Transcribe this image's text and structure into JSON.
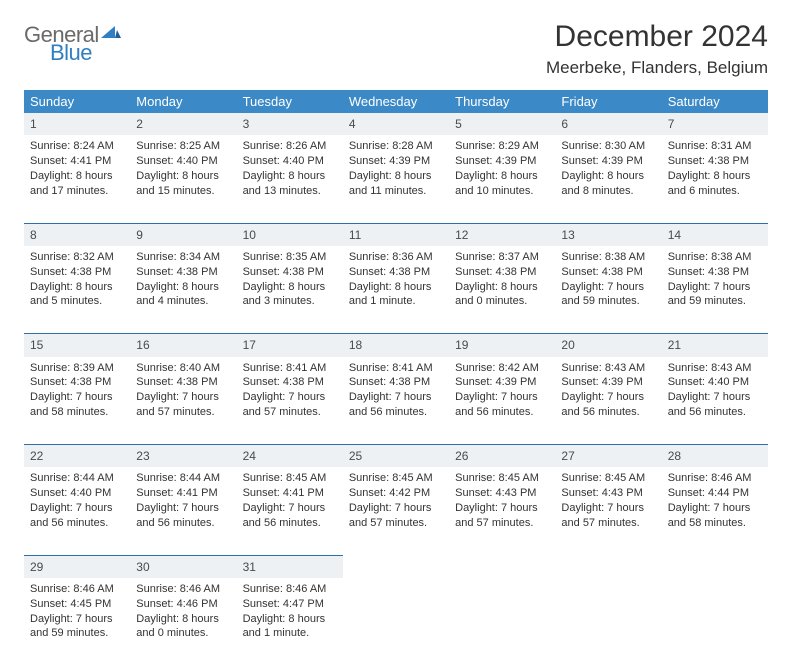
{
  "brand": {
    "general": "General",
    "blue": "Blue"
  },
  "title": "December 2024",
  "location": "Meerbeke, Flanders, Belgium",
  "colors": {
    "header_bg": "#3b89c7",
    "header_text": "#ffffff",
    "row_divider": "#2f6fa8",
    "daynum_bg": "#eef1f3",
    "text": "#333333",
    "logo_gray": "#6a6a6a",
    "logo_blue": "#2f7fc2",
    "page_bg": "#ffffff"
  },
  "weekdays": [
    "Sunday",
    "Monday",
    "Tuesday",
    "Wednesday",
    "Thursday",
    "Friday",
    "Saturday"
  ],
  "weeks": [
    [
      {
        "n": "1",
        "sr": "Sunrise: 8:24 AM",
        "ss": "Sunset: 4:41 PM",
        "dl": "Daylight: 8 hours and 17 minutes."
      },
      {
        "n": "2",
        "sr": "Sunrise: 8:25 AM",
        "ss": "Sunset: 4:40 PM",
        "dl": "Daylight: 8 hours and 15 minutes."
      },
      {
        "n": "3",
        "sr": "Sunrise: 8:26 AM",
        "ss": "Sunset: 4:40 PM",
        "dl": "Daylight: 8 hours and 13 minutes."
      },
      {
        "n": "4",
        "sr": "Sunrise: 8:28 AM",
        "ss": "Sunset: 4:39 PM",
        "dl": "Daylight: 8 hours and 11 minutes."
      },
      {
        "n": "5",
        "sr": "Sunrise: 8:29 AM",
        "ss": "Sunset: 4:39 PM",
        "dl": "Daylight: 8 hours and 10 minutes."
      },
      {
        "n": "6",
        "sr": "Sunrise: 8:30 AM",
        "ss": "Sunset: 4:39 PM",
        "dl": "Daylight: 8 hours and 8 minutes."
      },
      {
        "n": "7",
        "sr": "Sunrise: 8:31 AM",
        "ss": "Sunset: 4:38 PM",
        "dl": "Daylight: 8 hours and 6 minutes."
      }
    ],
    [
      {
        "n": "8",
        "sr": "Sunrise: 8:32 AM",
        "ss": "Sunset: 4:38 PM",
        "dl": "Daylight: 8 hours and 5 minutes."
      },
      {
        "n": "9",
        "sr": "Sunrise: 8:34 AM",
        "ss": "Sunset: 4:38 PM",
        "dl": "Daylight: 8 hours and 4 minutes."
      },
      {
        "n": "10",
        "sr": "Sunrise: 8:35 AM",
        "ss": "Sunset: 4:38 PM",
        "dl": "Daylight: 8 hours and 3 minutes."
      },
      {
        "n": "11",
        "sr": "Sunrise: 8:36 AM",
        "ss": "Sunset: 4:38 PM",
        "dl": "Daylight: 8 hours and 1 minute."
      },
      {
        "n": "12",
        "sr": "Sunrise: 8:37 AM",
        "ss": "Sunset: 4:38 PM",
        "dl": "Daylight: 8 hours and 0 minutes."
      },
      {
        "n": "13",
        "sr": "Sunrise: 8:38 AM",
        "ss": "Sunset: 4:38 PM",
        "dl": "Daylight: 7 hours and 59 minutes."
      },
      {
        "n": "14",
        "sr": "Sunrise: 8:38 AM",
        "ss": "Sunset: 4:38 PM",
        "dl": "Daylight: 7 hours and 59 minutes."
      }
    ],
    [
      {
        "n": "15",
        "sr": "Sunrise: 8:39 AM",
        "ss": "Sunset: 4:38 PM",
        "dl": "Daylight: 7 hours and 58 minutes."
      },
      {
        "n": "16",
        "sr": "Sunrise: 8:40 AM",
        "ss": "Sunset: 4:38 PM",
        "dl": "Daylight: 7 hours and 57 minutes."
      },
      {
        "n": "17",
        "sr": "Sunrise: 8:41 AM",
        "ss": "Sunset: 4:38 PM",
        "dl": "Daylight: 7 hours and 57 minutes."
      },
      {
        "n": "18",
        "sr": "Sunrise: 8:41 AM",
        "ss": "Sunset: 4:38 PM",
        "dl": "Daylight: 7 hours and 56 minutes."
      },
      {
        "n": "19",
        "sr": "Sunrise: 8:42 AM",
        "ss": "Sunset: 4:39 PM",
        "dl": "Daylight: 7 hours and 56 minutes."
      },
      {
        "n": "20",
        "sr": "Sunrise: 8:43 AM",
        "ss": "Sunset: 4:39 PM",
        "dl": "Daylight: 7 hours and 56 minutes."
      },
      {
        "n": "21",
        "sr": "Sunrise: 8:43 AM",
        "ss": "Sunset: 4:40 PM",
        "dl": "Daylight: 7 hours and 56 minutes."
      }
    ],
    [
      {
        "n": "22",
        "sr": "Sunrise: 8:44 AM",
        "ss": "Sunset: 4:40 PM",
        "dl": "Daylight: 7 hours and 56 minutes."
      },
      {
        "n": "23",
        "sr": "Sunrise: 8:44 AM",
        "ss": "Sunset: 4:41 PM",
        "dl": "Daylight: 7 hours and 56 minutes."
      },
      {
        "n": "24",
        "sr": "Sunrise: 8:45 AM",
        "ss": "Sunset: 4:41 PM",
        "dl": "Daylight: 7 hours and 56 minutes."
      },
      {
        "n": "25",
        "sr": "Sunrise: 8:45 AM",
        "ss": "Sunset: 4:42 PM",
        "dl": "Daylight: 7 hours and 57 minutes."
      },
      {
        "n": "26",
        "sr": "Sunrise: 8:45 AM",
        "ss": "Sunset: 4:43 PM",
        "dl": "Daylight: 7 hours and 57 minutes."
      },
      {
        "n": "27",
        "sr": "Sunrise: 8:45 AM",
        "ss": "Sunset: 4:43 PM",
        "dl": "Daylight: 7 hours and 57 minutes."
      },
      {
        "n": "28",
        "sr": "Sunrise: 8:46 AM",
        "ss": "Sunset: 4:44 PM",
        "dl": "Daylight: 7 hours and 58 minutes."
      }
    ],
    [
      {
        "n": "29",
        "sr": "Sunrise: 8:46 AM",
        "ss": "Sunset: 4:45 PM",
        "dl": "Daylight: 7 hours and 59 minutes."
      },
      {
        "n": "30",
        "sr": "Sunrise: 8:46 AM",
        "ss": "Sunset: 4:46 PM",
        "dl": "Daylight: 8 hours and 0 minutes."
      },
      {
        "n": "31",
        "sr": "Sunrise: 8:46 AM",
        "ss": "Sunset: 4:47 PM",
        "dl": "Daylight: 8 hours and 1 minute."
      },
      null,
      null,
      null,
      null
    ]
  ]
}
